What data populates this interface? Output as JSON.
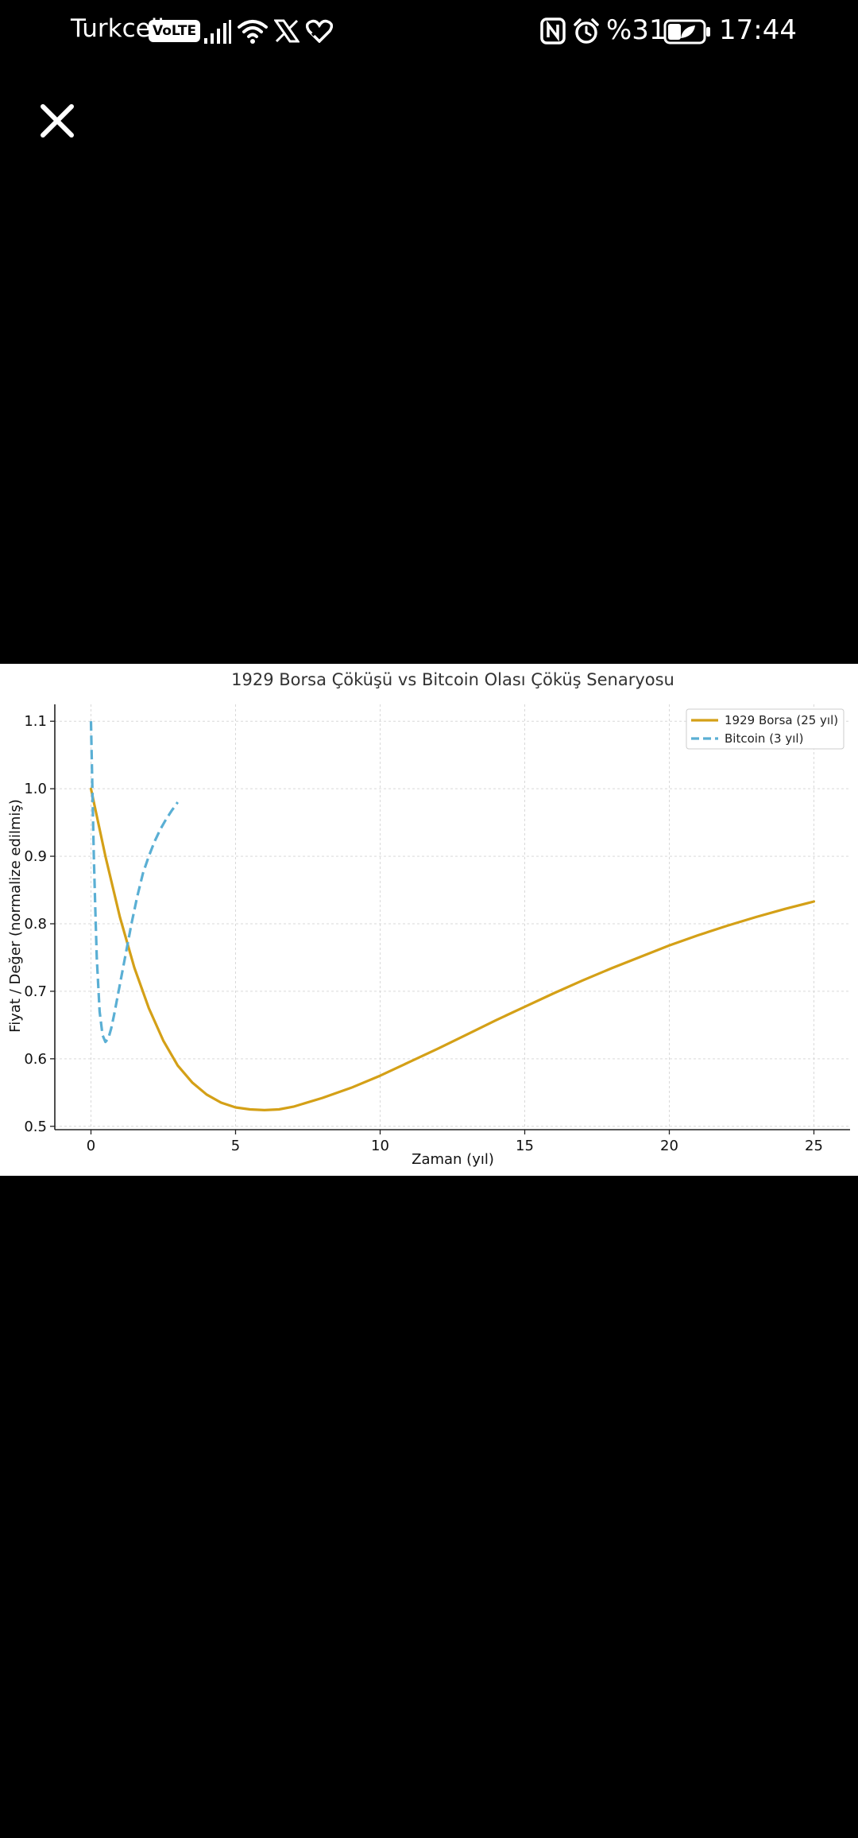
{
  "status_bar": {
    "carrier": "Turkcell",
    "volte_label": "VoLTE",
    "battery_percent": "%31",
    "time": "17:44",
    "icons": [
      "signal-icon",
      "wifi-icon",
      "x-app-icon",
      "health-app-icon",
      "nfc-icon",
      "alarm-icon",
      "battery-icon"
    ]
  },
  "viewer": {
    "close_icon": "close-icon"
  },
  "chart_data": {
    "type": "line",
    "title": "1929 Borsa Çöküşü vs Bitcoin Olası Çöküş Senaryosu",
    "xlabel": "Zaman (yıl)",
    "ylabel": "Fiyat / Değer (normalize edilmiş)",
    "xlim": [
      -1.25,
      26.25
    ],
    "ylim": [
      0.495,
      1.125
    ],
    "xticks": [
      "0",
      "5",
      "10",
      "15",
      "20",
      "25"
    ],
    "yticks": [
      "0.5",
      "0.6",
      "0.7",
      "0.8",
      "0.9",
      "1.0",
      "1.1"
    ],
    "grid": true,
    "legend_position": "top-right",
    "series": [
      {
        "name": "1929 Borsa (25 yıl)",
        "color": "#D4A017",
        "style": "solid",
        "x": [
          0,
          0.5,
          1,
          1.5,
          2,
          2.5,
          3,
          3.5,
          4,
          4.5,
          5,
          5.5,
          6,
          6.5,
          7,
          8,
          9,
          10,
          11,
          12,
          13,
          14,
          15,
          16,
          17,
          18,
          19,
          20,
          21,
          22,
          23,
          24,
          25
        ],
        "y": [
          1.0,
          0.9,
          0.81,
          0.735,
          0.675,
          0.627,
          0.59,
          0.565,
          0.547,
          0.535,
          0.528,
          0.525,
          0.524,
          0.525,
          0.529,
          0.542,
          0.557,
          0.575,
          0.595,
          0.615,
          0.636,
          0.657,
          0.677,
          0.697,
          0.716,
          0.734,
          0.751,
          0.768,
          0.783,
          0.797,
          0.81,
          0.822,
          0.833
        ]
      },
      {
        "name": "Bitcoin (3 yıl)",
        "color": "#5AAFD4",
        "style": "dashed",
        "x": [
          0,
          0.05,
          0.1,
          0.15,
          0.2,
          0.3,
          0.4,
          0.5,
          0.6,
          0.7,
          0.8,
          1.0,
          1.2,
          1.4,
          1.6,
          1.8,
          2.0,
          2.2,
          2.4,
          2.6,
          2.8,
          3.0
        ],
        "y": [
          1.1,
          1.0,
          0.9,
          0.82,
          0.75,
          0.67,
          0.635,
          0.625,
          0.63,
          0.645,
          0.665,
          0.71,
          0.755,
          0.8,
          0.84,
          0.875,
          0.9,
          0.922,
          0.94,
          0.955,
          0.968,
          0.98
        ]
      }
    ]
  }
}
